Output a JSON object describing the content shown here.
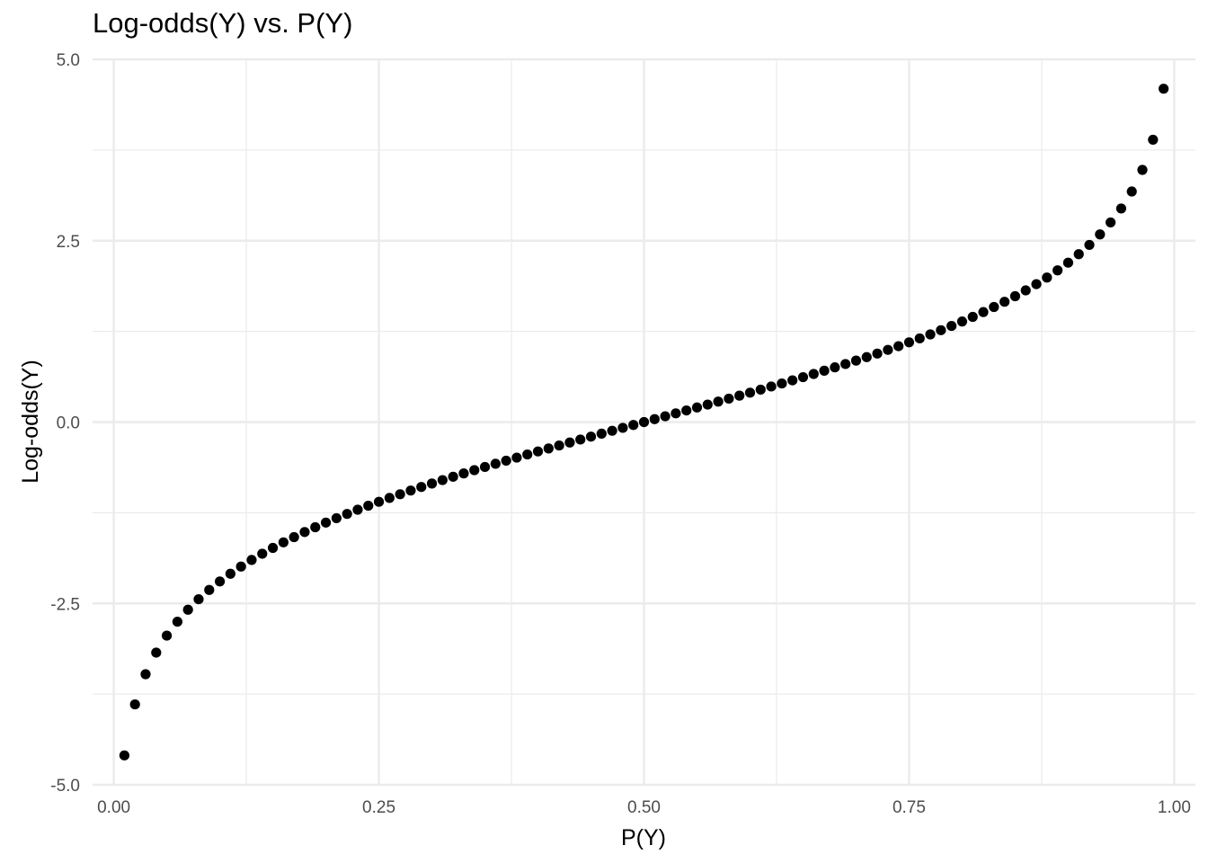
{
  "chart_data": {
    "type": "scatter",
    "title": "Log-odds(Y) vs. P(Y)",
    "xlabel": "P(Y)",
    "ylabel": "Log-odds(Y)",
    "xlim": [
      -0.02,
      1.02
    ],
    "ylim": [
      -5.0,
      5.0
    ],
    "x_ticks": [
      0.0,
      0.25,
      0.5,
      0.75,
      1.0
    ],
    "x_tick_labels": [
      "0.00",
      "0.25",
      "0.50",
      "0.75",
      "1.00"
    ],
    "y_ticks": [
      -5.0,
      -2.5,
      0.0,
      2.5,
      5.0
    ],
    "y_tick_labels": [
      "-5.0",
      "-2.5",
      "0.0",
      "2.5",
      "5.0"
    ],
    "grid": true,
    "legend": "none",
    "point_color": "#000000",
    "grid_color": "#ebebeb",
    "series": [
      {
        "x": [
          0.01,
          0.02,
          0.03,
          0.04,
          0.05,
          0.06,
          0.07,
          0.08,
          0.09,
          0.1,
          0.11,
          0.12,
          0.13,
          0.14,
          0.15,
          0.16,
          0.17,
          0.18,
          0.19,
          0.2,
          0.21,
          0.22,
          0.23,
          0.24,
          0.25,
          0.26,
          0.27,
          0.28,
          0.29,
          0.3,
          0.31,
          0.32,
          0.33,
          0.34,
          0.35,
          0.36,
          0.37,
          0.38,
          0.39,
          0.4,
          0.41,
          0.42,
          0.43,
          0.44,
          0.45,
          0.46,
          0.47,
          0.48,
          0.49,
          0.5,
          0.51,
          0.52,
          0.53,
          0.54,
          0.55,
          0.56,
          0.57,
          0.58,
          0.59,
          0.6,
          0.61,
          0.62,
          0.63,
          0.64,
          0.65,
          0.66,
          0.67,
          0.68,
          0.69,
          0.7,
          0.71,
          0.72,
          0.73,
          0.74,
          0.75,
          0.76,
          0.77,
          0.78,
          0.79,
          0.8,
          0.81,
          0.82,
          0.83,
          0.84,
          0.85,
          0.86,
          0.87,
          0.88,
          0.89,
          0.9,
          0.91,
          0.92,
          0.93,
          0.94,
          0.95,
          0.96,
          0.97,
          0.98,
          0.99
        ],
        "y": [
          -4.595,
          -3.892,
          -3.476,
          -3.178,
          -2.944,
          -2.752,
          -2.587,
          -2.442,
          -2.314,
          -2.197,
          -2.091,
          -1.992,
          -1.901,
          -1.815,
          -1.735,
          -1.658,
          -1.586,
          -1.516,
          -1.45,
          -1.386,
          -1.325,
          -1.266,
          -1.208,
          -1.153,
          -1.099,
          -1.046,
          -0.995,
          -0.944,
          -0.895,
          -0.847,
          -0.8,
          -0.754,
          -0.708,
          -0.663,
          -0.619,
          -0.575,
          -0.532,
          -0.49,
          -0.447,
          -0.405,
          -0.364,
          -0.323,
          -0.282,
          -0.241,
          -0.201,
          -0.16,
          -0.12,
          -0.08,
          -0.04,
          0.0,
          0.04,
          0.08,
          0.12,
          0.16,
          0.201,
          0.241,
          0.282,
          0.323,
          0.364,
          0.405,
          0.447,
          0.49,
          0.532,
          0.575,
          0.619,
          0.663,
          0.708,
          0.754,
          0.8,
          0.847,
          0.895,
          0.944,
          0.995,
          1.046,
          1.099,
          1.153,
          1.208,
          1.266,
          1.325,
          1.386,
          1.45,
          1.516,
          1.586,
          1.658,
          1.735,
          1.815,
          1.901,
          1.992,
          2.091,
          2.197,
          2.314,
          2.442,
          2.587,
          2.752,
          2.944,
          3.178,
          3.476,
          3.892,
          4.595
        ]
      }
    ]
  }
}
